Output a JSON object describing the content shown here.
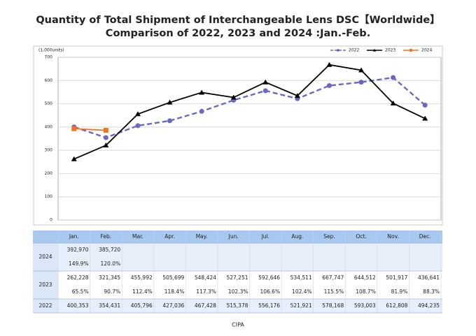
{
  "chart_data": {
    "type": "line",
    "title": "Quantity of Total Shipment of Interchangeable Lens DSC【Worldwide】",
    "subtitle": "Comparison of 2022, 2023 and 2024 :Jan.-Feb.",
    "y_label": "(1,000units)",
    "source": "CIPA",
    "categories": [
      "Jan.",
      "Feb.",
      "Mar.",
      "Apr.",
      "May.",
      "Jun.",
      "Jul.",
      "Aug.",
      "Sep.",
      "Oct.",
      "Nov.",
      "Dec."
    ],
    "ylim": [
      0,
      700
    ],
    "yticks": [
      0,
      100,
      200,
      300,
      400,
      500,
      600,
      700
    ],
    "grid": true,
    "legend": "top-right",
    "series": [
      {
        "name": "2022",
        "color": "#6b67c4",
        "dashed": true,
        "marker": "circle",
        "values": [
          400.353,
          354.431,
          405.796,
          427.036,
          467.428,
          515.378,
          556.176,
          521.921,
          578.168,
          593.003,
          612.808,
          494.235
        ],
        "value_labels": [
          "400,353",
          "354,431",
          "405,796",
          "427,036",
          "467,428",
          "515,378",
          "556,176",
          "521,921",
          "578,168",
          "593,003",
          "612,808",
          "494,235"
        ]
      },
      {
        "name": "2023",
        "color": "#000000",
        "dashed": false,
        "marker": "triangle",
        "values": [
          262.228,
          321.345,
          455.992,
          505.699,
          548.424,
          527.251,
          592.646,
          534.511,
          667.747,
          644.512,
          501.917,
          436.641
        ],
        "value_labels": [
          "262,228",
          "321,345",
          "455,992",
          "505,699",
          "548,424",
          "527,251",
          "592,646",
          "534,511",
          "667,747",
          "644,512",
          "501,917",
          "436,641"
        ],
        "growth_labels": [
          "65.5%",
          "90.7%",
          "112.4%",
          "118.4%",
          "117.3%",
          "102.3%",
          "106.6%",
          "102.4%",
          "115.5%",
          "108.7%",
          "81.9%",
          "88.3%"
        ]
      },
      {
        "name": "2024",
        "color": "#ee7521",
        "dashed": false,
        "marker": "square",
        "values": [
          392.97,
          385.72,
          null,
          null,
          null,
          null,
          null,
          null,
          null,
          null,
          null,
          null
        ],
        "value_labels": [
          "392,970",
          "385,720",
          null,
          null,
          null,
          null,
          null,
          null,
          null,
          null,
          null,
          null
        ],
        "growth_labels": [
          "149.9%",
          "120.0%",
          null,
          null,
          null,
          null,
          null,
          null,
          null,
          null,
          null,
          null
        ]
      }
    ]
  }
}
